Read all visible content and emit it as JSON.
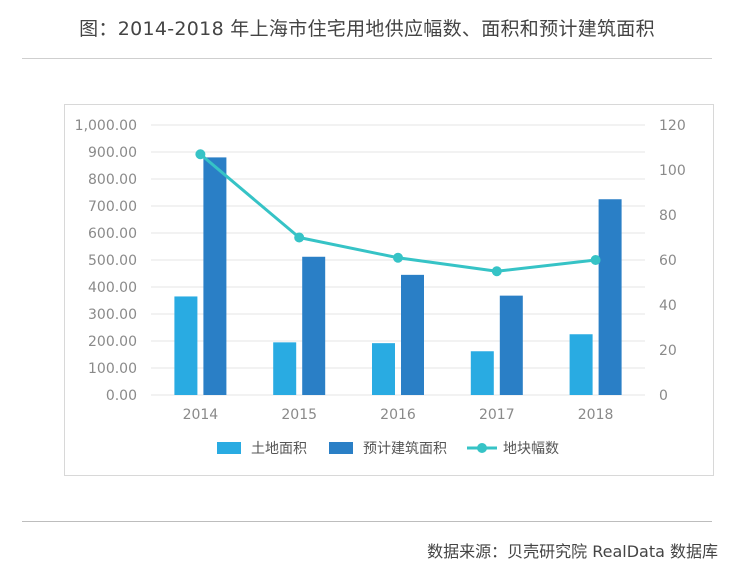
{
  "header": {
    "title": "图：2014-2018 年上海市住宅用地供应幅数、面积和预计建筑面积"
  },
  "footer": {
    "source": "数据来源：贝壳研究院 RealData 数据库"
  },
  "colors": {
    "land_area": "#29abe2",
    "building_area": "#2a7fc6",
    "parcel_count": "#36c3c6",
    "grid": "#e6e6e6",
    "tick_text": "#8a8a8a"
  },
  "chart_data": {
    "type": "bar",
    "categories": [
      "2014",
      "2015",
      "2016",
      "2017",
      "2018"
    ],
    "series": [
      {
        "name": "土地面积",
        "type": "bar",
        "axis": "left",
        "values": [
          365,
          195,
          192,
          162,
          225
        ]
      },
      {
        "name": "预计建筑面积",
        "type": "bar",
        "axis": "left",
        "values": [
          880,
          512,
          445,
          368,
          725
        ]
      },
      {
        "name": "地块幅数",
        "type": "line",
        "axis": "right",
        "values": [
          107,
          70,
          61,
          55,
          60
        ]
      }
    ],
    "left_axis": {
      "ylim": [
        0,
        1000
      ],
      "ticks": [
        "0.00",
        "100.00",
        "200.00",
        "300.00",
        "400.00",
        "500.00",
        "600.00",
        "700.00",
        "800.00",
        "900.00",
        "1,000.00"
      ]
    },
    "right_axis": {
      "ylim": [
        0,
        120
      ],
      "ticks": [
        "0",
        "20",
        "40",
        "60",
        "80",
        "100",
        "120"
      ]
    },
    "grid": true,
    "legend_position": "bottom-center",
    "title": "图：2014-2018 年上海市住宅用地供应幅数、面积和预计建筑面积"
  }
}
